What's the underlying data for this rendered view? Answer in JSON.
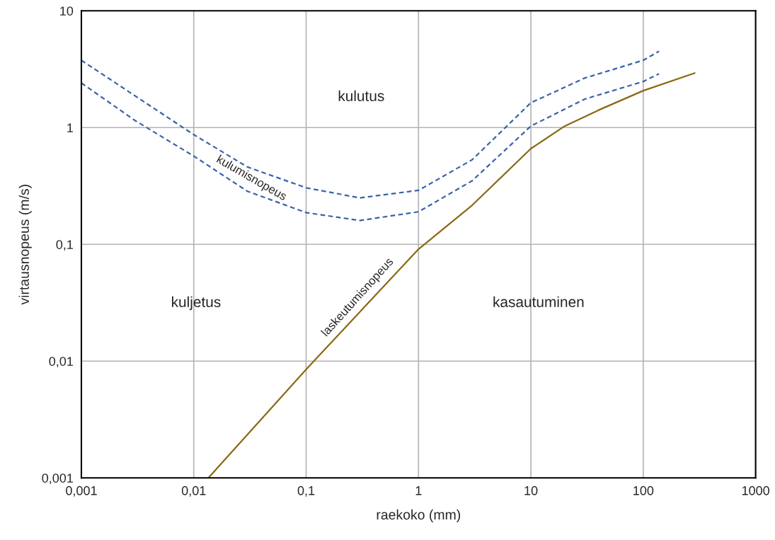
{
  "chart_data": {
    "type": "line",
    "xlabel": "raekoko (mm)",
    "ylabel": "virtausnopeus (m/s)",
    "log": "xy",
    "grid": true,
    "legend": false,
    "marker": "none",
    "xlim": [
      0.001,
      1000
    ],
    "ylim": [
      0.001,
      10
    ],
    "xticks": [
      {
        "value": 0.001,
        "label": "0,001"
      },
      {
        "value": 0.01,
        "label": "0,01"
      },
      {
        "value": 0.1,
        "label": "0,1"
      },
      1,
      10,
      100,
      1000
    ],
    "yticks": [
      {
        "value": 0.001,
        "label": "0,001"
      },
      {
        "value": 0.01,
        "label": "0,01"
      },
      {
        "value": 0.1,
        "label": "0,1"
      },
      1,
      10
    ],
    "series": [
      {
        "color": "#3b62a8",
        "line_style": "dashed",
        "x": [
          0.001,
          0.003,
          0.01,
          0.03,
          0.1,
          0.3,
          1,
          3,
          10,
          30,
          100,
          138
        ],
        "values": [
          3.77,
          1.87,
          0.87,
          0.46,
          0.305,
          0.25,
          0.29,
          0.53,
          1.63,
          2.65,
          3.77,
          4.5
        ]
      },
      {
        "color": "#3b62a8",
        "line_style": "dashed",
        "x": [
          0.001,
          0.003,
          0.01,
          0.03,
          0.1,
          0.3,
          1,
          3,
          10,
          30,
          100,
          138
        ],
        "values": [
          2.41,
          1.15,
          0.57,
          0.285,
          0.187,
          0.16,
          0.19,
          0.35,
          1.03,
          1.75,
          2.48,
          2.89
        ]
      },
      {
        "color": "#8b6914",
        "line_style": "solid",
        "x": [
          0.0135,
          0.1,
          1,
          3,
          10,
          20,
          40,
          100,
          287
        ],
        "values": [
          0.001,
          0.0085,
          0.091,
          0.216,
          0.66,
          1.03,
          1.41,
          2.07,
          2.93
        ]
      }
    ],
    "annotations": [
      "kulutus",
      "kuljetus",
      "kasautuminen",
      "kulumisnopeus",
      "laskeutumisnopeus"
    ]
  }
}
